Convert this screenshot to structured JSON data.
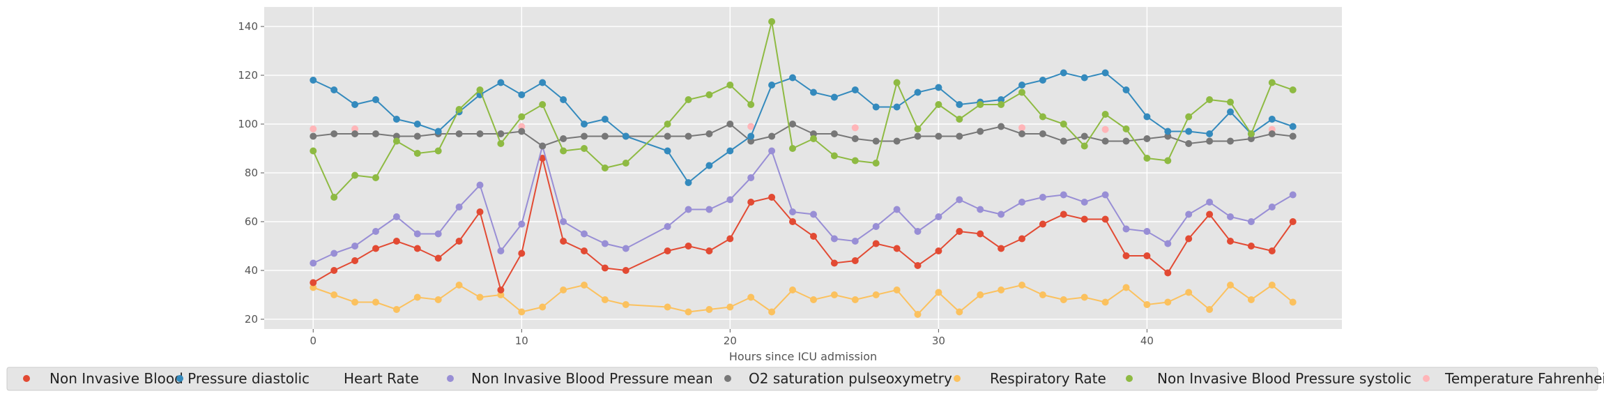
{
  "chart_data": {
    "type": "line",
    "title": "",
    "xlabel": "Hours since ICU admission",
    "ylabel": "",
    "xlim": [
      -2.35,
      49.35
    ],
    "ylim": [
      16,
      148
    ],
    "xticks": [
      0,
      10,
      20,
      30,
      40
    ],
    "yticks": [
      20,
      40,
      60,
      80,
      100,
      120,
      140
    ],
    "grid": true,
    "legend_position": "bottom",
    "series": [
      {
        "name": "Non Invasive Blood Pressure diastolic",
        "color": "#e24a33",
        "style": "line-markers",
        "x": [
          0,
          1,
          2,
          3,
          4,
          5,
          6,
          7,
          8,
          9,
          10,
          11,
          12,
          13,
          14,
          15,
          17,
          18,
          19,
          20,
          21,
          22,
          23,
          24,
          25,
          26,
          27,
          28,
          29,
          30,
          31,
          32,
          33,
          34,
          35,
          36,
          37,
          38,
          39,
          40,
          41,
          42,
          43,
          44,
          45,
          46,
          47
        ],
        "values": [
          35,
          40,
          44,
          49,
          52,
          49,
          45,
          52,
          64,
          32,
          47,
          86,
          52,
          48,
          41,
          40,
          48,
          50,
          48,
          53,
          68,
          70,
          60,
          54,
          43,
          44,
          51,
          49,
          42,
          48,
          56,
          55,
          49,
          53,
          59,
          63,
          61,
          61,
          46,
          46,
          39,
          53,
          63,
          52,
          50,
          48,
          60
        ]
      },
      {
        "name": "Heart Rate",
        "color": "#348abd",
        "style": "line-markers",
        "x": [
          0,
          1,
          2,
          3,
          4,
          5,
          6,
          7,
          8,
          9,
          10,
          11,
          12,
          13,
          14,
          15,
          17,
          18,
          19,
          20,
          21,
          22,
          23,
          24,
          25,
          26,
          27,
          28,
          29,
          30,
          31,
          32,
          33,
          34,
          35,
          36,
          37,
          38,
          39,
          40,
          41,
          42,
          43,
          44,
          45,
          46,
          47
        ],
        "values": [
          118,
          114,
          108,
          110,
          102,
          100,
          97,
          105,
          112,
          117,
          112,
          117,
          110,
          100,
          102,
          95,
          89,
          76,
          83,
          89,
          95,
          116,
          119,
          113,
          111,
          114,
          107,
          107,
          113,
          115,
          108,
          109,
          110,
          116,
          118,
          121,
          119,
          121,
          114,
          103,
          97,
          97,
          96,
          105,
          96,
          102,
          99
        ]
      },
      {
        "name": "Non Invasive Blood Pressure mean",
        "color": "#988ed5",
        "style": "line-markers",
        "x": [
          0,
          1,
          2,
          3,
          4,
          5,
          6,
          7,
          8,
          9,
          10,
          11,
          12,
          13,
          14,
          15,
          17,
          18,
          19,
          20,
          21,
          22,
          23,
          24,
          25,
          26,
          27,
          28,
          29,
          30,
          31,
          32,
          33,
          34,
          35,
          36,
          37,
          38,
          39,
          40,
          41,
          42,
          43,
          44,
          45,
          46,
          47
        ],
        "values": [
          43,
          47,
          50,
          56,
          62,
          55,
          55,
          66,
          75,
          48,
          59,
          91,
          60,
          55,
          51,
          49,
          58,
          65,
          65,
          69,
          78,
          89,
          64,
          63,
          53,
          52,
          58,
          65,
          56,
          62,
          69,
          65,
          63,
          68,
          70,
          71,
          68,
          71,
          57,
          56,
          51,
          63,
          68,
          62,
          60,
          66,
          71
        ]
      },
      {
        "name": "O2 saturation pulseoxymetry",
        "color": "#777777",
        "style": "line-markers",
        "x": [
          0,
          1,
          2,
          3,
          4,
          5,
          6,
          7,
          8,
          9,
          10,
          11,
          12,
          13,
          14,
          15,
          17,
          18,
          19,
          20,
          21,
          22,
          23,
          24,
          25,
          26,
          27,
          28,
          29,
          30,
          31,
          32,
          33,
          34,
          35,
          36,
          37,
          38,
          39,
          40,
          41,
          42,
          43,
          44,
          45,
          46,
          47
        ],
        "values": [
          95,
          96,
          96,
          96,
          95,
          95,
          96,
          96,
          96,
          96,
          97,
          91,
          94,
          95,
          95,
          95,
          95,
          95,
          96,
          100,
          93,
          95,
          100,
          96,
          96,
          94,
          93,
          93,
          95,
          95,
          95,
          97,
          99,
          96,
          96,
          93,
          95,
          93,
          93,
          94,
          95,
          92,
          93,
          93,
          94,
          96,
          95
        ]
      },
      {
        "name": "Respiratory Rate",
        "color": "#fbc15e",
        "style": "line-markers",
        "x": [
          0,
          1,
          2,
          3,
          4,
          5,
          6,
          7,
          8,
          9,
          10,
          11,
          12,
          13,
          14,
          15,
          17,
          18,
          19,
          20,
          21,
          22,
          23,
          24,
          25,
          26,
          27,
          28,
          29,
          30,
          31,
          32,
          33,
          34,
          35,
          36,
          37,
          38,
          39,
          40,
          41,
          42,
          43,
          44,
          45,
          46,
          47
        ],
        "values": [
          33,
          30,
          27,
          27,
          24,
          29,
          28,
          34,
          29,
          30,
          23,
          25,
          32,
          34,
          28,
          26,
          25,
          23,
          24,
          25,
          29,
          23,
          32,
          28,
          30,
          28,
          30,
          32,
          22,
          31,
          23,
          30,
          32,
          34,
          30,
          28,
          29,
          27,
          33,
          26,
          27,
          31,
          24,
          34,
          28,
          34,
          27
        ]
      },
      {
        "name": "Non Invasive Blood Pressure systolic",
        "color": "#8eba42",
        "style": "line-markers",
        "x": [
          0,
          1,
          2,
          3,
          4,
          5,
          6,
          7,
          8,
          9,
          10,
          11,
          12,
          13,
          14,
          15,
          17,
          18,
          19,
          20,
          21,
          22,
          23,
          24,
          25,
          26,
          27,
          28,
          29,
          30,
          31,
          32,
          33,
          34,
          35,
          36,
          37,
          38,
          39,
          40,
          41,
          42,
          43,
          44,
          45,
          46,
          47
        ],
        "values": [
          89,
          70,
          79,
          78,
          93,
          88,
          89,
          106,
          114,
          92,
          103,
          108,
          89,
          90,
          82,
          84,
          100,
          110,
          112,
          116,
          108,
          142,
          90,
          94,
          87,
          85,
          84,
          117,
          98,
          108,
          102,
          108,
          108,
          113,
          103,
          100,
          91,
          104,
          98,
          86,
          85,
          103,
          110,
          109,
          96,
          117,
          114
        ]
      },
      {
        "name": "Temperature Fahrenheit",
        "color": "#ffb5b8",
        "style": "markers",
        "x": [
          0,
          2,
          10,
          21,
          26,
          34,
          38,
          46
        ],
        "values": [
          98,
          98,
          99,
          99,
          98.5,
          98.5,
          97.8,
          97.8
        ]
      }
    ]
  }
}
